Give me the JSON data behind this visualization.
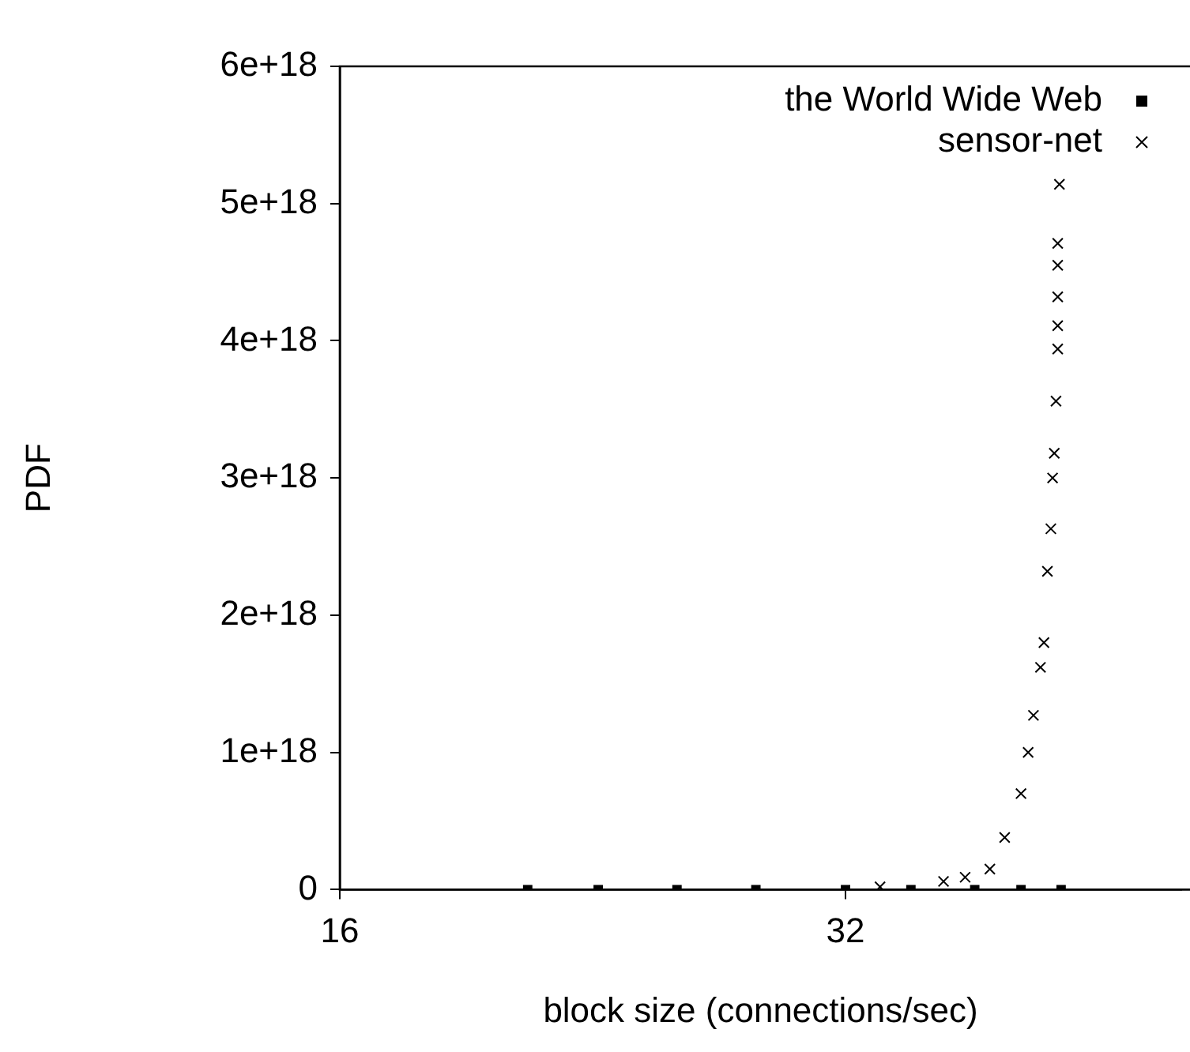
{
  "chart_data": {
    "type": "scatter",
    "xlabel": "block size (connections/sec)",
    "ylabel": "PDF",
    "log": "x",
    "xlim": [
      16,
      50.7
    ],
    "xticks": [
      16,
      32
    ],
    "ylim": [
      0,
      6e+18
    ],
    "yticks": [
      {
        "value": 0,
        "label": "0"
      },
      {
        "value": 1e+18,
        "label": "1e+18"
      },
      {
        "value": 2e+18,
        "label": "2e+18"
      },
      {
        "value": 3e+18,
        "label": "3e+18"
      },
      {
        "value": 4e+18,
        "label": "4e+18"
      },
      {
        "value": 5e+18,
        "label": "5e+18"
      },
      {
        "value": 6e+18,
        "label": "6e+18"
      }
    ],
    "grid": false,
    "legend": "top right",
    "series": [
      {
        "name": "the World Wide Web",
        "color": "#000000",
        "marker": "square",
        "x": [
          20.7,
          22.8,
          25.4,
          28.3,
          32,
          35.0,
          38.2,
          40.7,
          43.0
        ],
        "values": [
          0,
          0,
          0,
          0,
          0,
          0,
          0,
          0,
          0
        ]
      },
      {
        "name": "sensor-net",
        "color": "#000000",
        "marker": "cross",
        "x": [
          33.55,
          36.6,
          37.7,
          39.0,
          39.8,
          40.7,
          41.1,
          41.4,
          41.8,
          42.0,
          42.2,
          42.4,
          42.5,
          42.6,
          42.7,
          42.8,
          42.8,
          42.8,
          42.8,
          42.8,
          42.9
        ],
        "values": [
          2e+16,
          6e+16,
          9e+16,
          1.5e+17,
          3.8e+17,
          7e+17,
          1e+18,
          1.27e+18,
          1.62e+18,
          1.8e+18,
          2.32e+18,
          2.63e+18,
          3e+18,
          3.18e+18,
          3.56e+18,
          3.94e+18,
          4.11e+18,
          4.32e+18,
          4.55e+18,
          4.71e+18,
          5.14e+18
        ]
      }
    ]
  }
}
